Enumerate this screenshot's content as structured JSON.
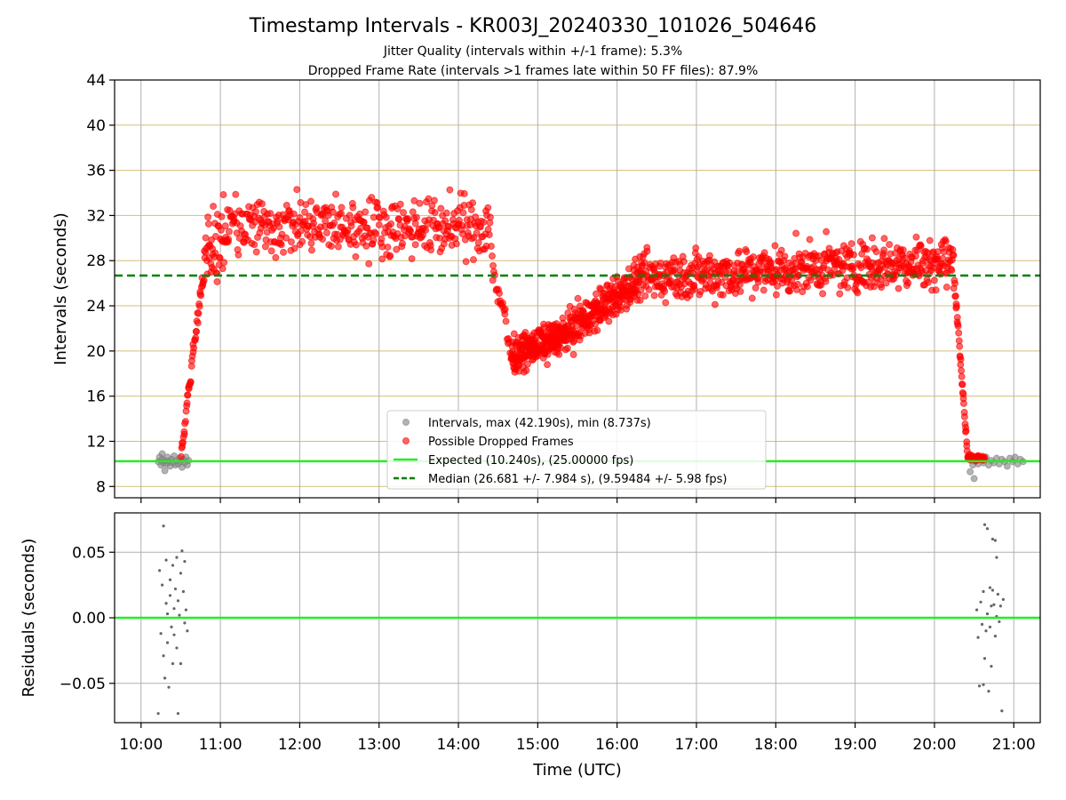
{
  "chart_data": [
    {
      "type": "scatter",
      "title": "Timestamp Intervals - KR003J_20240330_101026_504646",
      "subtitles": [
        "Jitter Quality (intervals within +/-1 frame): 5.3%",
        "Dropped Frame Rate (intervals >1 frames late within 50 FF files): 87.9%"
      ],
      "xlabel": "",
      "ylabel": "Intervals (seconds)",
      "ylim": [
        7,
        44
      ],
      "yticks": [
        8,
        12,
        16,
        20,
        24,
        28,
        32,
        36,
        40,
        44
      ],
      "grid": true,
      "legend_position": "bottom-center",
      "series": [
        {
          "name": "Intervals, max (42.190s), min (8.737s)",
          "color": "#808080",
          "points": [
            [
              "10:13",
              10.2
            ],
            [
              "10:14",
              10.6
            ],
            [
              "10:15",
              9.9
            ],
            [
              "10:16",
              10.4
            ],
            [
              "10:16",
              10.9
            ],
            [
              "10:17",
              10.1
            ],
            [
              "10:18",
              9.4
            ],
            [
              "10:18",
              10.3
            ],
            [
              "10:19",
              10.0
            ],
            [
              "10:20",
              10.6
            ],
            [
              "10:21",
              10.2
            ],
            [
              "10:22",
              9.8
            ],
            [
              "10:23",
              10.4
            ],
            [
              "10:24",
              10.1
            ],
            [
              "10:25",
              10.7
            ],
            [
              "10:26",
              9.9
            ],
            [
              "10:27",
              10.3
            ],
            [
              "10:28",
              10.0
            ],
            [
              "10:29",
              10.5
            ],
            [
              "10:30",
              10.2
            ],
            [
              "10:31",
              9.7
            ],
            [
              "10:32",
              10.4
            ],
            [
              "10:33",
              10.1
            ],
            [
              "10:34",
              10.6
            ],
            [
              "10:35",
              9.9
            ],
            [
              "10:36",
              10.3
            ],
            [
              "20:27",
              9.3
            ],
            [
              "20:28",
              10.3
            ],
            [
              "20:29",
              9.9
            ],
            [
              "20:30",
              8.7
            ],
            [
              "20:31",
              10.6
            ],
            [
              "20:33",
              10.0
            ],
            [
              "20:35",
              10.4
            ],
            [
              "20:37",
              10.1
            ],
            [
              "20:39",
              10.6
            ],
            [
              "20:41",
              9.9
            ],
            [
              "20:43",
              10.3
            ],
            [
              "20:45",
              10.1
            ],
            [
              "20:47",
              10.5
            ],
            [
              "20:49",
              10.0
            ],
            [
              "20:51",
              10.4
            ],
            [
              "20:53",
              10.2
            ],
            [
              "20:55",
              9.8
            ],
            [
              "20:57",
              10.5
            ],
            [
              "20:59",
              10.2
            ],
            [
              "21:01",
              10.6
            ],
            [
              "21:03",
              10.0
            ],
            [
              "21:05",
              10.4
            ],
            [
              "21:07",
              10.2
            ]
          ]
        },
        {
          "name": "Possible Dropped Frames",
          "color": "#ff0000",
          "segments": [
            {
              "start": "10:30",
              "end": "10:47",
              "y0": 10.5,
              "y1": 27.0,
              "spread": 1.2,
              "n": 45
            },
            {
              "start": "10:47",
              "end": "11:05",
              "y0": 27.0,
              "y1": 31.0,
              "spread": 5.0,
              "n": 50
            },
            {
              "start": "11:05",
              "end": "14:25",
              "y0": 31.0,
              "y1": 31.0,
              "spread": 3.8,
              "n": 400
            },
            {
              "start": "14:25",
              "end": "14:40",
              "y0": 28.0,
              "y1": 20.0,
              "spread": 3.0,
              "n": 25
            },
            {
              "start": "14:40",
              "end": "15:20",
              "y0": 19.5,
              "y1": 21.5,
              "spread": 2.2,
              "n": 220
            },
            {
              "start": "15:20",
              "end": "16:20",
              "y0": 21.5,
              "y1": 26.5,
              "spread": 2.6,
              "n": 260
            },
            {
              "start": "16:20",
              "end": "20:15",
              "y0": 26.5,
              "y1": 28.0,
              "spread": 3.3,
              "n": 620
            },
            {
              "start": "20:15",
              "end": "20:25",
              "y0": 26.5,
              "y1": 11.0,
              "spread": 0.9,
              "n": 35
            },
            {
              "start": "20:25",
              "end": "20:38",
              "y0": 10.5,
              "y1": 10.5,
              "spread": 0.4,
              "n": 40
            }
          ]
        },
        {
          "name": "Expected (10.240s), (25.00000 fps)",
          "color": "#22ee22",
          "type": "hline",
          "y": 10.24
        },
        {
          "name": "Median (26.681 +/- 7.984 s), (9.59484 +/- 5.98 fps)",
          "color": "#008000",
          "type": "hline",
          "style": "dashed",
          "y": 26.681
        }
      ]
    },
    {
      "type": "scatter",
      "title": "",
      "xlabel": "Time (UTC)",
      "ylabel": "Residuals (seconds)",
      "ylim": [
        -0.08,
        0.08
      ],
      "yticks": [
        -0.05,
        0.0,
        0.05
      ],
      "ytick_labels": [
        "−0.05",
        "0.00",
        "0.05"
      ],
      "xticks": [
        "10:00",
        "11:00",
        "12:00",
        "13:00",
        "14:00",
        "15:00",
        "16:00",
        "17:00",
        "18:00",
        "19:00",
        "20:00",
        "21:00"
      ],
      "xlim": [
        "09:40",
        "21:20"
      ],
      "grid": true,
      "series": [
        {
          "name": "",
          "color": "#666666",
          "points": [
            [
              "10:13",
              -0.073
            ],
            [
              "10:14",
              0.036
            ],
            [
              "10:15",
              -0.012
            ],
            [
              "10:16",
              0.025
            ],
            [
              "10:17",
              0.07
            ],
            [
              "10:17",
              -0.029
            ],
            [
              "10:18",
              -0.046
            ],
            [
              "10:19",
              0.044
            ],
            [
              "10:19",
              0.011
            ],
            [
              "10:20",
              -0.019
            ],
            [
              "10:20",
              0.003
            ],
            [
              "10:21",
              -0.053
            ],
            [
              "10:22",
              0.029
            ],
            [
              "10:22",
              0.017
            ],
            [
              "10:23",
              -0.007
            ],
            [
              "10:24",
              0.04
            ],
            [
              "10:24",
              -0.035
            ],
            [
              "10:25",
              0.007
            ],
            [
              "10:25",
              -0.013
            ],
            [
              "10:26",
              0.022
            ],
            [
              "10:27",
              -0.023
            ],
            [
              "10:27",
              0.046
            ],
            [
              "10:28",
              0.013
            ],
            [
              "10:28",
              -0.073
            ],
            [
              "10:29",
              0.002
            ],
            [
              "10:30",
              0.034
            ],
            [
              "10:30",
              -0.035
            ],
            [
              "10:31",
              0.051
            ],
            [
              "10:32",
              0.02
            ],
            [
              "10:33",
              -0.004
            ],
            [
              "10:33",
              0.043
            ],
            [
              "10:34",
              0.006
            ],
            [
              "10:35",
              -0.01
            ],
            [
              "20:32",
              0.006
            ],
            [
              "20:33",
              -0.015
            ],
            [
              "20:34",
              -0.052
            ],
            [
              "20:35",
              0.012
            ],
            [
              "20:36",
              -0.005
            ],
            [
              "20:37",
              -0.051
            ],
            [
              "20:37",
              0.02
            ],
            [
              "20:38",
              0.071
            ],
            [
              "20:38",
              -0.031
            ],
            [
              "20:39",
              -0.01
            ],
            [
              "20:40",
              0.068
            ],
            [
              "20:40",
              0.003
            ],
            [
              "20:41",
              -0.056
            ],
            [
              "20:42",
              0.023
            ],
            [
              "20:42",
              -0.007
            ],
            [
              "20:43",
              0.009
            ],
            [
              "20:43",
              -0.037
            ],
            [
              "20:44",
              0.06
            ],
            [
              "20:44",
              0.021
            ],
            [
              "20:45",
              0.01
            ],
            [
              "20:46",
              0.059
            ],
            [
              "20:46",
              -0.014
            ],
            [
              "20:47",
              0.001
            ],
            [
              "20:47",
              0.046
            ],
            [
              "20:48",
              0.018
            ],
            [
              "20:49",
              -0.003
            ],
            [
              "20:50",
              0.009
            ],
            [
              "20:51",
              -0.071
            ],
            [
              "20:52",
              0.014
            ]
          ]
        },
        {
          "name": "",
          "color": "#22ee22",
          "type": "hline",
          "y": 0.0
        }
      ]
    }
  ]
}
